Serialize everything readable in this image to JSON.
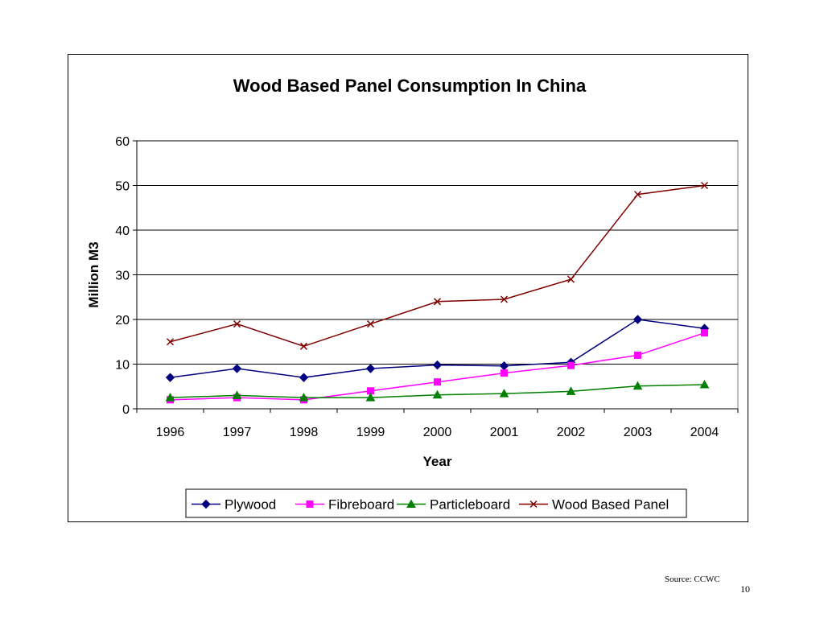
{
  "chart_data": {
    "type": "line",
    "title": "Wood Based Panel Consumption In China",
    "xlabel": "Year",
    "ylabel": "Million M3",
    "categories": [
      "1996",
      "1997",
      "1998",
      "1999",
      "2000",
      "2001",
      "2002",
      "2003",
      "2004"
    ],
    "ylim": [
      0,
      60
    ],
    "yticks": [
      0,
      10,
      20,
      30,
      40,
      50,
      60
    ],
    "grid": true,
    "legend_position": "bottom",
    "series": [
      {
        "name": "Plywood",
        "color": "#000080",
        "marker": "diamond",
        "values": [
          7.0,
          9.0,
          7.0,
          9.0,
          9.8,
          9.6,
          10.4,
          20.0,
          18.0
        ]
      },
      {
        "name": "Fibreboard",
        "color": "#ff00ff",
        "marker": "square",
        "values": [
          2.0,
          2.5,
          2.0,
          4.0,
          6.0,
          8.0,
          9.7,
          12.0,
          17.0
        ]
      },
      {
        "name": "Particleboard",
        "color": "#008000",
        "marker": "triangle",
        "values": [
          2.5,
          3.0,
          2.5,
          2.5,
          3.1,
          3.4,
          3.9,
          5.1,
          5.4
        ]
      },
      {
        "name": "Wood Based Panel",
        "color": "#800000",
        "marker": "x",
        "values": [
          15.0,
          19.0,
          14.0,
          19.0,
          24.0,
          24.5,
          29.0,
          48.0,
          50.0
        ]
      }
    ]
  },
  "footer": {
    "source": "Source: CCWC",
    "page_number": "10"
  }
}
